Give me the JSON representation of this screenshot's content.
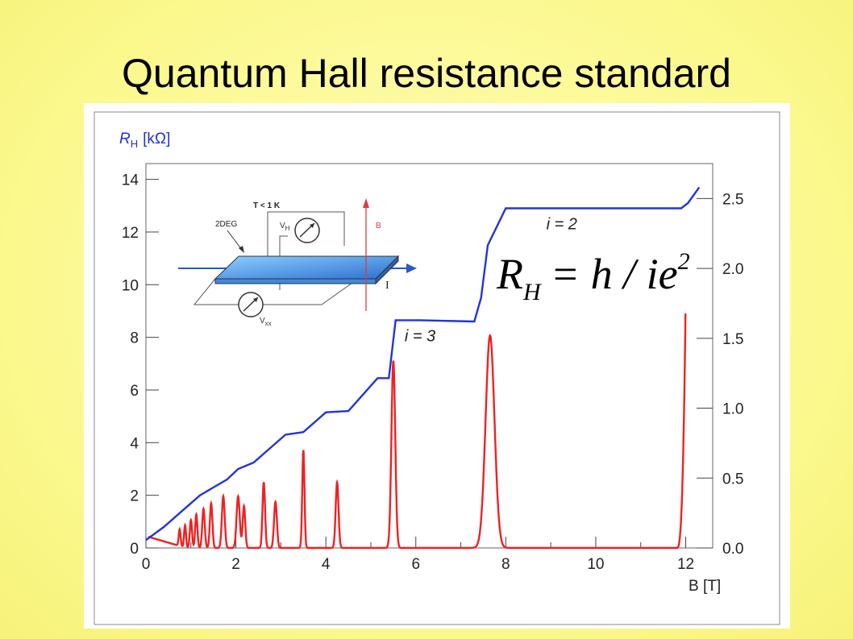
{
  "slide": {
    "title": "Quantum Hall resistance standard"
  },
  "chart_data": {
    "type": "line",
    "x_axis": {
      "label": "B [T]",
      "range": [
        0,
        12.6
      ],
      "ticks": [
        0,
        2,
        4,
        6,
        8,
        10,
        12
      ]
    },
    "y_axis_left": {
      "label": "R",
      "label_sub": "H",
      "label_unit": "[kΩ]",
      "range": [
        0,
        14.6
      ],
      "ticks": [
        0,
        2,
        4,
        6,
        8,
        10,
        12,
        14
      ],
      "color": "#2233cc"
    },
    "y_axis_right": {
      "range": [
        0,
        2.75
      ],
      "ticks": [
        "0.0",
        "0.5",
        "1.0",
        "1.5",
        "2.0",
        "2.5"
      ]
    },
    "grid": false,
    "series": [
      {
        "color": "#2233dd",
        "x": [
          0.0,
          0.4,
          0.8,
          1.2,
          1.5,
          1.8,
          2.05,
          2.4,
          2.7,
          3.1,
          3.5,
          4.0,
          4.5,
          5.15,
          5.4,
          5.55,
          6.1,
          7.3,
          7.45,
          7.6,
          8.0,
          10.5,
          11.9,
          12.05,
          12.3
        ],
        "y": [
          0.3,
          0.8,
          1.4,
          2.0,
          2.3,
          2.6,
          3.0,
          3.25,
          3.7,
          4.3,
          4.4,
          5.15,
          5.2,
          6.45,
          6.45,
          8.65,
          8.65,
          8.6,
          9.5,
          11.5,
          12.9,
          12.9,
          12.9,
          13.1,
          13.7
        ]
      },
      {
        "color": "#ee2222",
        "peaks": [
          {
            "x": 0.75,
            "h": 0.12,
            "w": 0.03
          },
          {
            "x": 0.87,
            "h": 0.16,
            "w": 0.03
          },
          {
            "x": 1.0,
            "h": 0.2,
            "w": 0.035
          },
          {
            "x": 1.12,
            "h": 0.24,
            "w": 0.035
          },
          {
            "x": 1.28,
            "h": 0.28,
            "w": 0.04
          },
          {
            "x": 1.45,
            "h": 0.32,
            "w": 0.04
          },
          {
            "x": 1.72,
            "h": 0.37,
            "w": 0.045
          },
          {
            "x": 2.05,
            "h": 0.37,
            "w": 0.05
          },
          {
            "x": 2.18,
            "h": 0.3,
            "w": 0.04
          },
          {
            "x": 2.62,
            "h": 0.47,
            "w": 0.04
          },
          {
            "x": 2.88,
            "h": 0.33,
            "w": 0.045
          },
          {
            "x": 3.5,
            "h": 0.7,
            "w": 0.035
          },
          {
            "x": 4.25,
            "h": 0.47,
            "w": 0.045
          },
          {
            "x": 5.5,
            "h": 1.34,
            "w": 0.06
          },
          {
            "x": 7.65,
            "h": 1.52,
            "w": 0.14
          }
        ],
        "rise": {
          "from": 11.8,
          "to": 12.0,
          "top": 1.81
        },
        "start_level": 0.08
      }
    ],
    "annotations": [
      {
        "text": "i = 2",
        "x": 8.9,
        "y": 12.1
      },
      {
        "text": "i = 3",
        "x": 5.75,
        "y": 7.85
      }
    ],
    "formula": {
      "R": "R",
      "sub": "H",
      "rest": "= h / ie",
      "sup": "2"
    },
    "inset": {
      "temperature": "T < 1 K",
      "sample": "2DEG",
      "hall_voltage": "V",
      "hall_voltage_sub": "H",
      "long_voltage": "V",
      "long_voltage_sub": "xx",
      "field": "B",
      "current": "I"
    }
  }
}
